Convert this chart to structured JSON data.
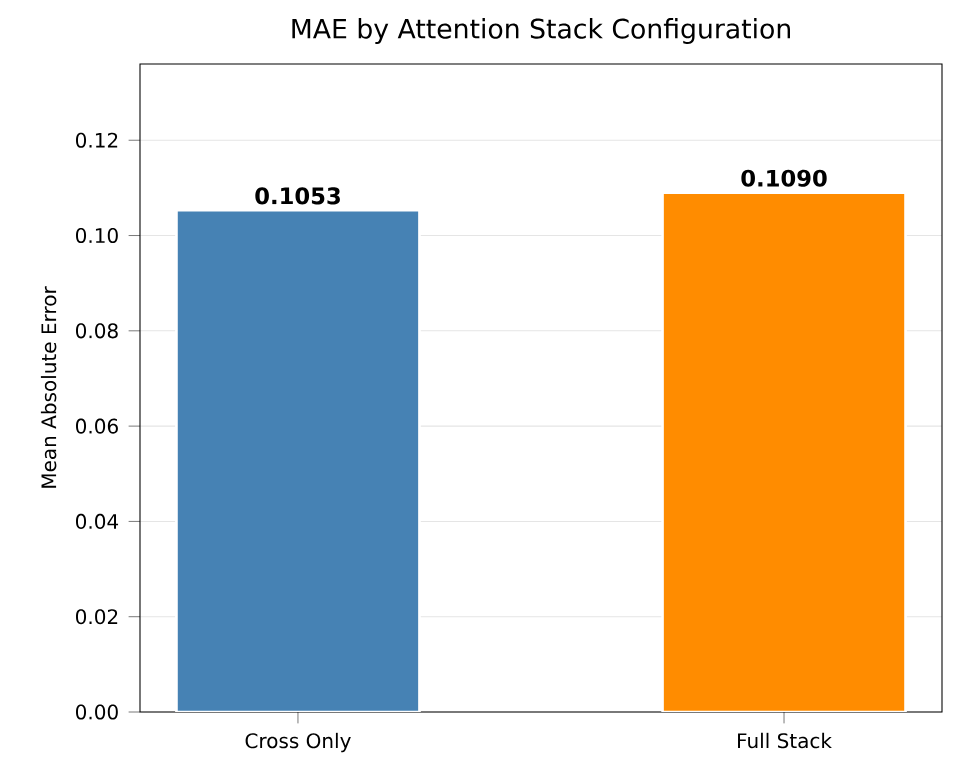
{
  "chart_data": {
    "type": "bar",
    "title": "MAE by Attention Stack Configuration",
    "ylabel": "Mean Absolute Error",
    "categories": [
      "Cross Only",
      "Full Stack"
    ],
    "values": [
      0.1053,
      0.109
    ],
    "value_labels": [
      "0.1053",
      "0.1090"
    ],
    "colors": [
      "#4682b4",
      "#ff8c00"
    ],
    "ylim": [
      0,
      0.136
    ],
    "yticks": [
      {
        "value": 0,
        "label": "0.00"
      },
      {
        "value": 0.02,
        "label": "0.02"
      },
      {
        "value": 0.04,
        "label": "0.04"
      },
      {
        "value": 0.06,
        "label": "0.06"
      },
      {
        "value": 0.08,
        "label": "0.08"
      },
      {
        "value": 0.1,
        "label": "0.10"
      },
      {
        "value": 0.12,
        "label": "0.12"
      }
    ],
    "grid": "y"
  }
}
